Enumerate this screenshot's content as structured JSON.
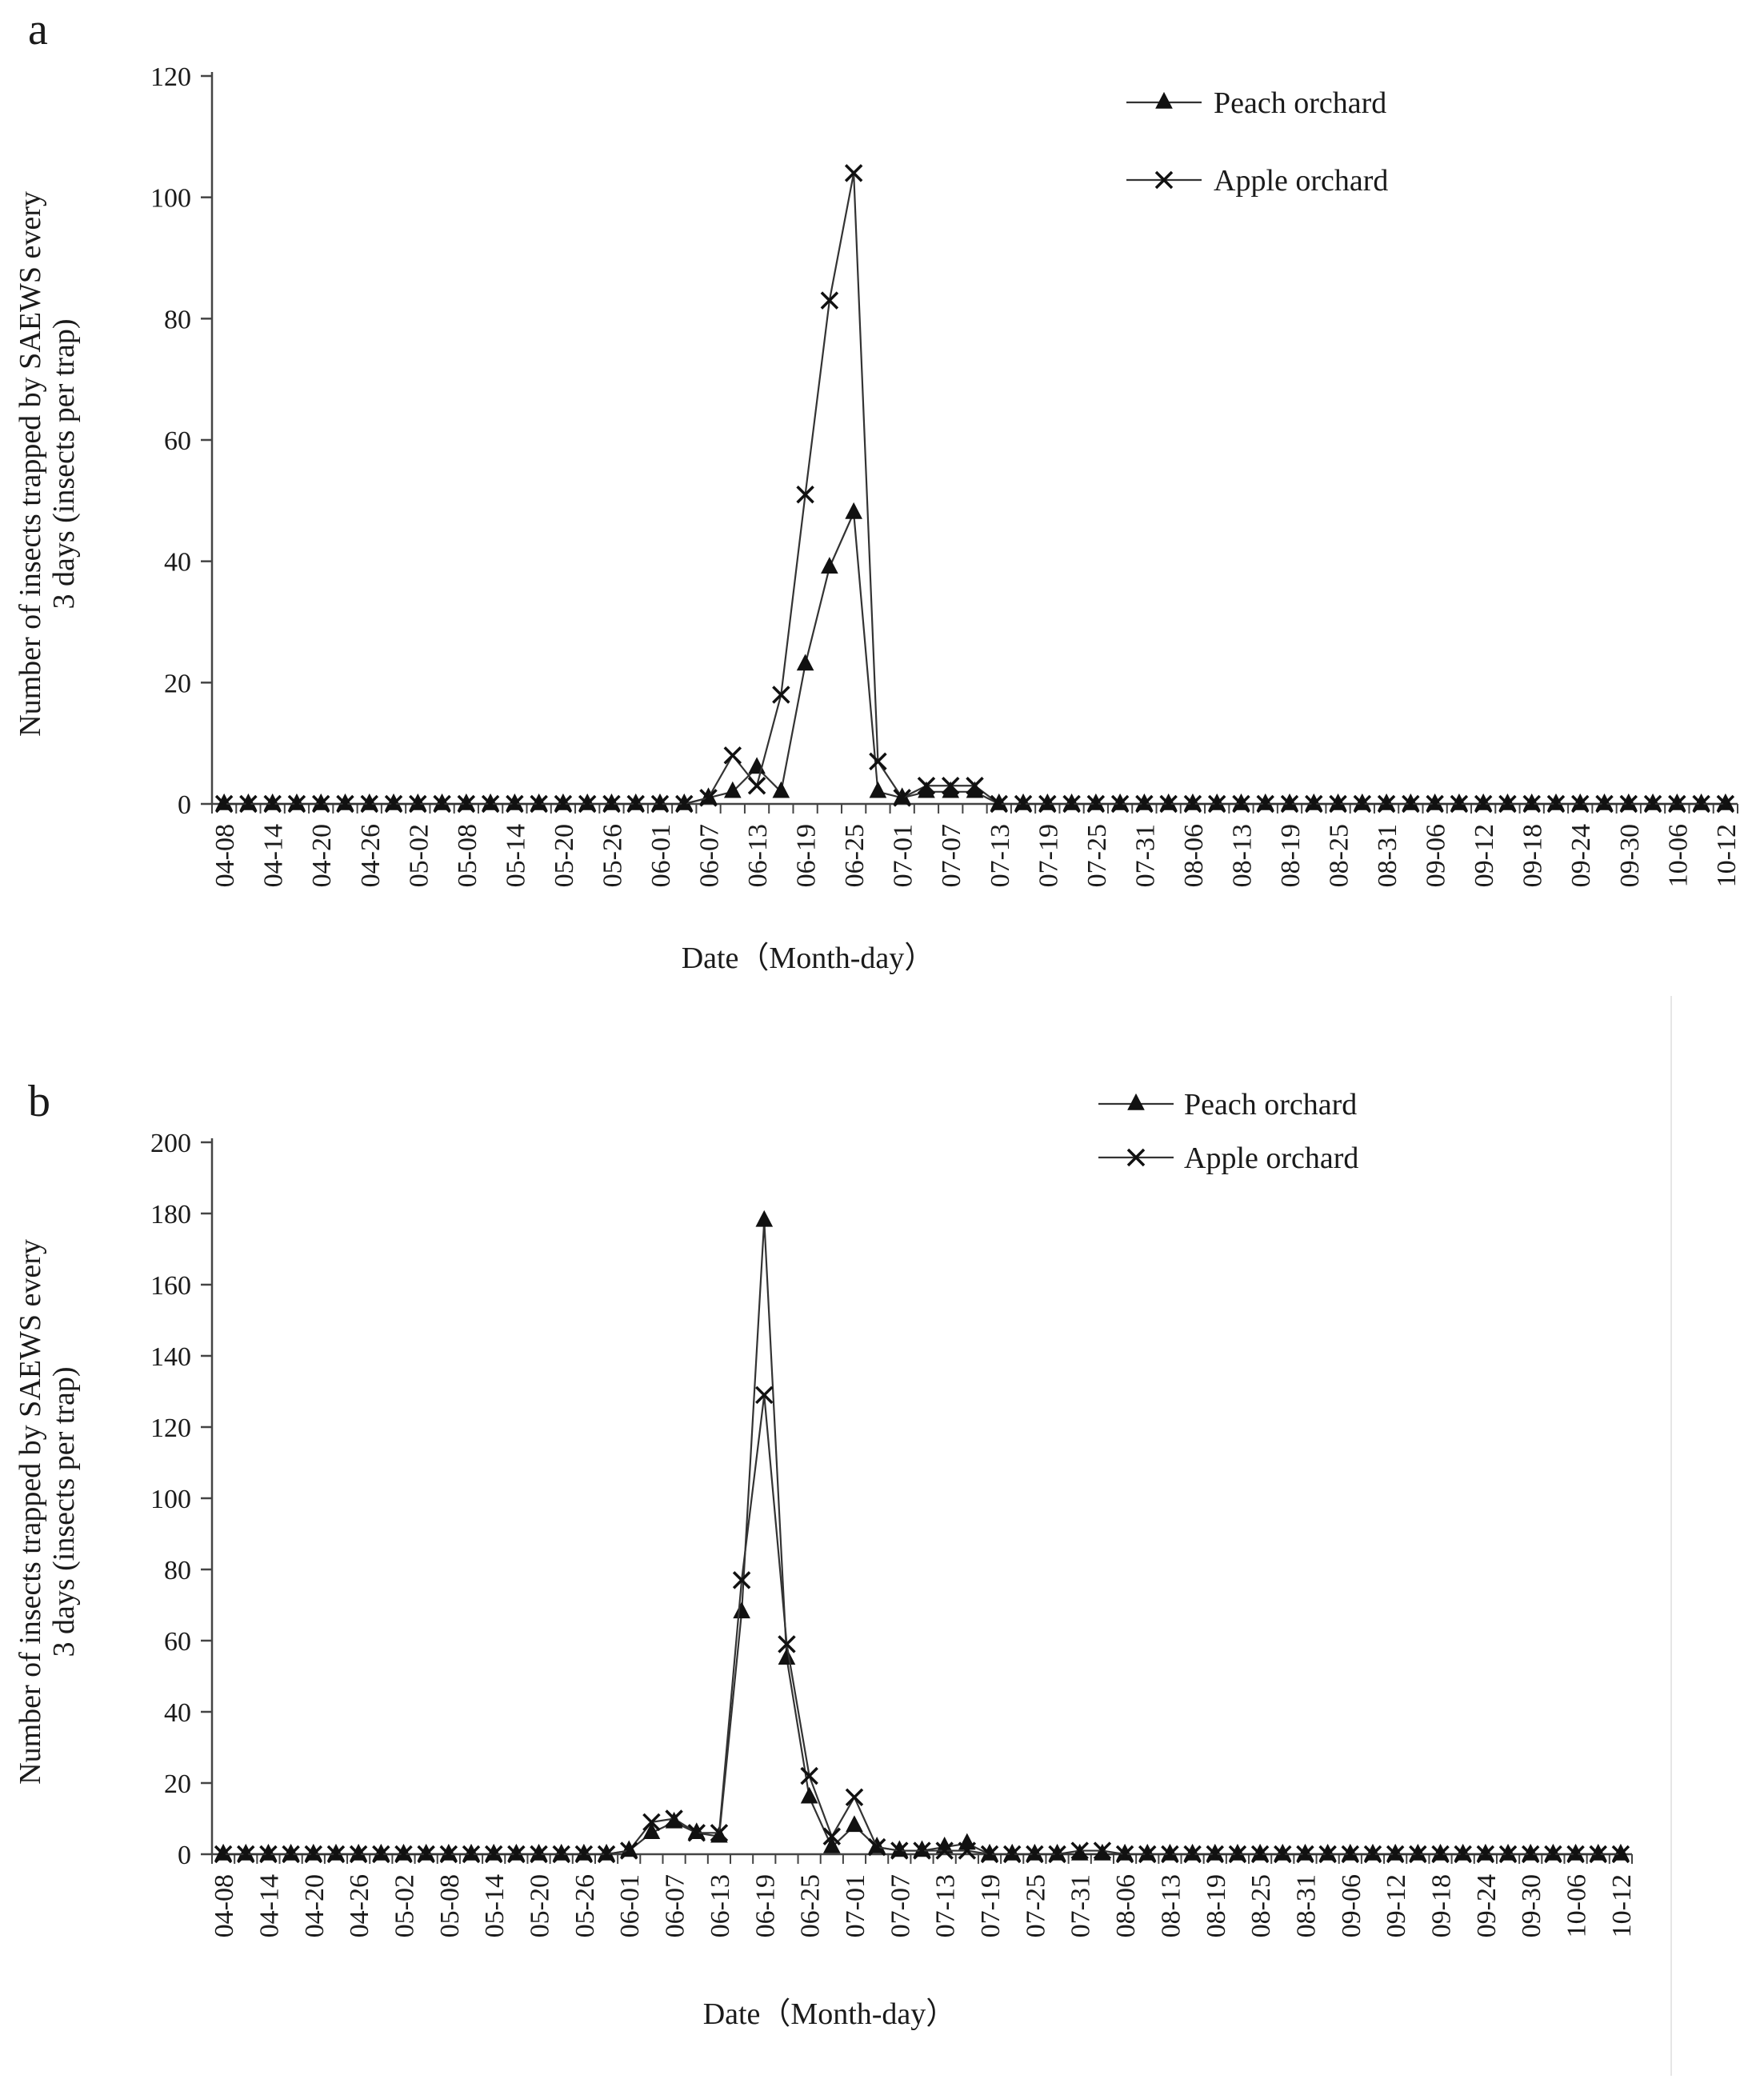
{
  "chart_data": [
    {
      "type": "line",
      "panel_label": "a",
      "title": "",
      "xlabel": "Date（Month-day）",
      "ylabel_line1": "Number of insects trapped by SAEWS every",
      "ylabel_line2": "3 days (insects per trap)",
      "ylim": [
        0,
        120
      ],
      "yticks": [
        "0",
        "20",
        "40",
        "60",
        "80",
        "100",
        "120"
      ],
      "grid": false,
      "legend": "top-right",
      "x_tick_labels": [
        "04-08",
        "04-14",
        "04-20",
        "04-26",
        "05-02",
        "05-08",
        "05-14",
        "05-20",
        "05-26",
        "06-01",
        "06-07",
        "06-13",
        "06-19",
        "06-25",
        "07-01",
        "07-07",
        "07-13",
        "07-19",
        "07-25",
        "07-31",
        "08-06",
        "08-13",
        "08-19",
        "08-25",
        "08-31",
        "09-06",
        "09-12",
        "09-18",
        "09-24",
        "09-30",
        "10-06",
        "10-12"
      ],
      "n_points": 63,
      "series": [
        {
          "name": "Peach orchard",
          "marker": "triangle",
          "values": [
            0,
            0,
            0,
            0,
            0,
            0,
            0,
            0,
            0,
            0,
            0,
            0,
            0,
            0,
            0,
            0,
            0,
            0,
            0,
            0,
            1,
            2,
            6,
            2,
            23,
            39,
            48,
            2,
            1,
            2,
            2,
            2,
            0,
            0,
            0,
            0,
            0,
            0,
            0,
            0,
            0,
            0,
            0,
            0,
            0,
            0,
            0,
            0,
            0,
            0,
            0,
            0,
            0,
            0,
            0,
            0,
            0,
            0,
            0,
            0,
            0,
            0,
            0
          ]
        },
        {
          "name": "Apple orchard",
          "marker": "x",
          "values": [
            0,
            0,
            0,
            0,
            0,
            0,
            0,
            0,
            0,
            0,
            0,
            0,
            0,
            0,
            0,
            0,
            0,
            0,
            0,
            0,
            1,
            8,
            3,
            18,
            51,
            83,
            104,
            7,
            1,
            3,
            3,
            3,
            0,
            0,
            0,
            0,
            0,
            0,
            0,
            0,
            0,
            0,
            0,
            0,
            0,
            0,
            0,
            0,
            0,
            0,
            0,
            0,
            0,
            0,
            0,
            0,
            0,
            0,
            0,
            0,
            0,
            0,
            0
          ]
        }
      ]
    },
    {
      "type": "line",
      "panel_label": "b",
      "title": "",
      "xlabel": "Date（Month-day）",
      "ylabel_line1": "Number of insects trapped by SAEWS every",
      "ylabel_line2": "3 days (insects per trap)",
      "ylim": [
        0,
        200
      ],
      "yticks": [
        "0",
        "20",
        "40",
        "60",
        "80",
        "100",
        "120",
        "140",
        "160",
        "180",
        "200"
      ],
      "grid": false,
      "legend": "top-right",
      "x_tick_labels": [
        "04-08",
        "04-14",
        "04-20",
        "04-26",
        "05-02",
        "05-08",
        "05-14",
        "05-20",
        "05-26",
        "06-01",
        "06-07",
        "06-13",
        "06-19",
        "06-25",
        "07-01",
        "07-07",
        "07-13",
        "07-19",
        "07-25",
        "07-31",
        "08-06",
        "08-13",
        "08-19",
        "08-25",
        "08-31",
        "09-06",
        "09-12",
        "09-18",
        "09-24",
        "09-30",
        "10-06",
        "10-12"
      ],
      "n_points": 63,
      "series": [
        {
          "name": "Peach orchard",
          "marker": "triangle",
          "values": [
            0,
            0,
            0,
            0,
            0,
            0,
            0,
            0,
            0,
            0,
            0,
            0,
            0,
            0,
            0,
            0,
            0,
            0,
            1,
            6,
            9,
            6,
            5,
            68,
            178,
            55,
            16,
            2,
            8,
            2,
            1,
            1,
            2,
            3,
            0,
            0,
            0,
            0,
            0,
            0,
            0,
            0,
            0,
            0,
            0,
            0,
            0,
            0,
            0,
            0,
            0,
            0,
            0,
            0,
            0,
            0,
            0,
            0,
            0,
            0,
            0,
            0,
            0
          ]
        },
        {
          "name": "Apple orchard",
          "marker": "x",
          "values": [
            0,
            0,
            0,
            0,
            0,
            0,
            0,
            0,
            0,
            0,
            0,
            0,
            0,
            0,
            0,
            0,
            0,
            0,
            1,
            9,
            10,
            6,
            6,
            77,
            129,
            59,
            22,
            5,
            16,
            2,
            1,
            1,
            1,
            1,
            0,
            0,
            0,
            0,
            1,
            1,
            0,
            0,
            0,
            0,
            0,
            0,
            0,
            0,
            0,
            0,
            0,
            0,
            0,
            0,
            0,
            0,
            0,
            0,
            0,
            0,
            0,
            0,
            0
          ]
        }
      ]
    }
  ]
}
